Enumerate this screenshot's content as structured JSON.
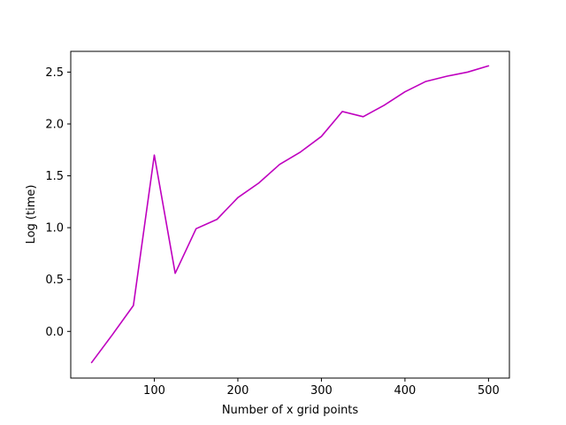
{
  "chart_data": {
    "type": "line",
    "title": "",
    "xlabel": "Number of x grid points",
    "ylabel": "Log (time)",
    "xlim": [
      0,
      525
    ],
    "ylim": [
      -0.45,
      2.7
    ],
    "grid": false,
    "legend": "none",
    "x_ticks": [
      100,
      200,
      300,
      400,
      500
    ],
    "y_ticks": [
      0.0,
      0.5,
      1.0,
      1.5,
      2.0,
      2.5
    ],
    "x_tick_labels": [
      "100",
      "200",
      "300",
      "400",
      "500"
    ],
    "y_tick_labels": [
      "0.0",
      "0.5",
      "1.0",
      "1.5",
      "2.0",
      "2.5"
    ],
    "series": [
      {
        "color": "#bf00bf",
        "x": [
          25,
          50,
          75,
          100,
          125,
          150,
          175,
          200,
          225,
          250,
          275,
          300,
          325,
          350,
          375,
          400,
          425,
          450,
          475,
          500
        ],
        "y": [
          -0.3,
          -0.03,
          0.25,
          1.7,
          0.56,
          0.99,
          1.08,
          1.29,
          1.43,
          1.61,
          1.73,
          1.88,
          2.12,
          2.07,
          2.18,
          2.31,
          2.41,
          2.46,
          2.5,
          2.56
        ]
      }
    ]
  }
}
